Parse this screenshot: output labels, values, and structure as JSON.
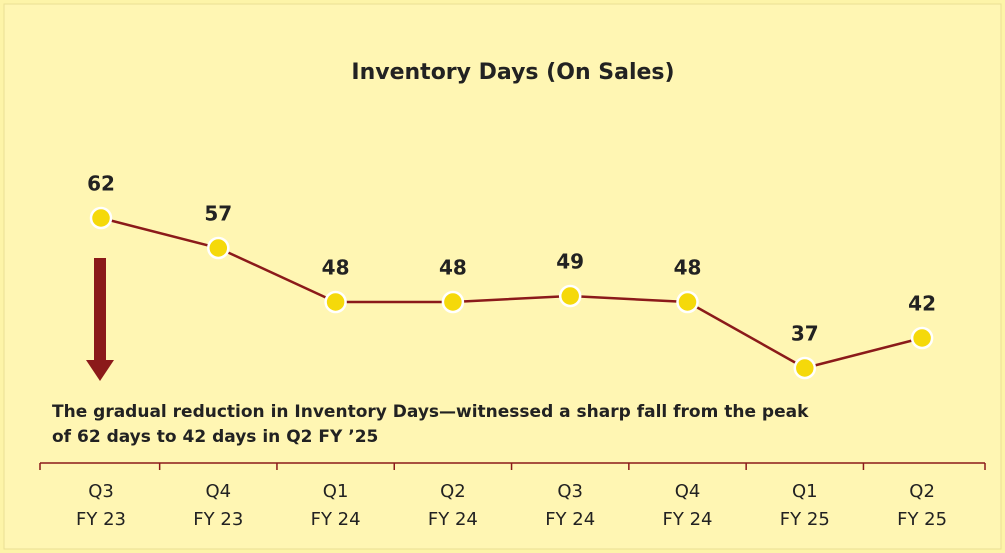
{
  "chart_data": {
    "type": "line",
    "title": "Inventory Days (On Sales)",
    "categories": [
      [
        "Q3",
        "FY 23"
      ],
      [
        "Q4",
        "FY 23"
      ],
      [
        "Q1",
        "FY 24"
      ],
      [
        "Q2",
        "FY 24"
      ],
      [
        "Q3",
        "FY 24"
      ],
      [
        "Q4",
        "FY 24"
      ],
      [
        "Q1",
        "FY 25"
      ],
      [
        "Q2",
        "FY 25"
      ]
    ],
    "values": [
      62,
      57,
      48,
      48,
      49,
      48,
      37,
      42
    ],
    "color": "#8b1a1a",
    "marker_color": "#f5d90a",
    "annotation": [
      "The gradual reduction in Inventory Days—witnessed a sharp fall from the peak",
      "of 62 days to 42 days in Q2 FY ’25"
    ]
  }
}
